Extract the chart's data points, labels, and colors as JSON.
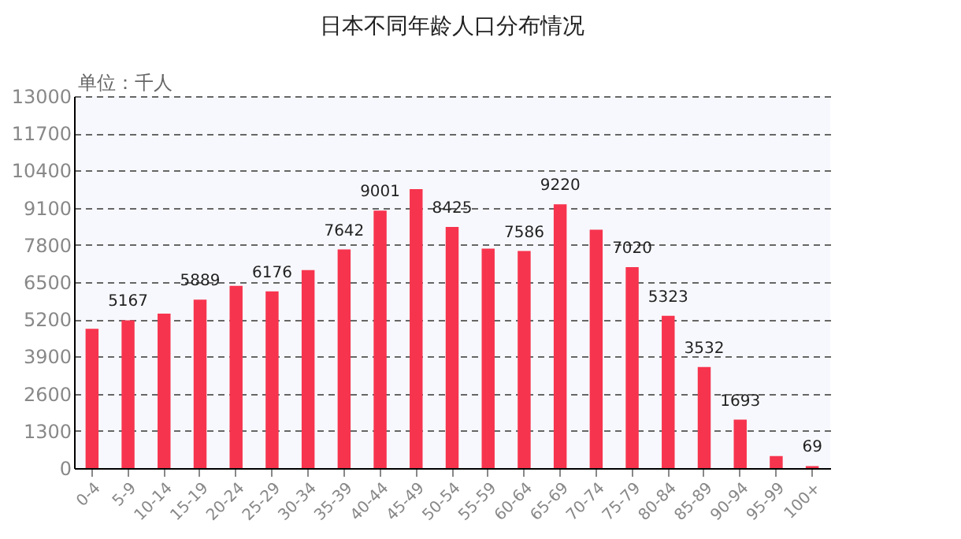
{
  "chart_data": {
    "type": "bar",
    "title": "日本不同年龄人口分布情况",
    "ylabel": "单位：千人",
    "categories": [
      "0-4",
      "5-9",
      "10-14",
      "15-19",
      "20-24",
      "25-29",
      "30-34",
      "35-39",
      "40-44",
      "45-49",
      "50-54",
      "55-59",
      "60-64",
      "65-69",
      "70-74",
      "75-79",
      "80-84",
      "85-89",
      "90-94",
      "95-99",
      "100+"
    ],
    "values": [
      4870,
      5167,
      5400,
      5889,
      6370,
      6176,
      6920,
      7642,
      9001,
      9750,
      8425,
      7670,
      7586,
      9220,
      8330,
      7020,
      5323,
      3532,
      1693,
      420,
      69
    ],
    "value_labels": [
      null,
      "5167",
      null,
      "5889",
      null,
      "6176",
      null,
      "7642",
      "9001",
      null,
      "8425",
      null,
      "7586",
      "9220",
      null,
      "7020",
      "5323",
      "3532",
      "1693",
      null,
      "69"
    ],
    "color": "#f7344e",
    "ylim": [
      0,
      13000
    ],
    "yticks": [
      0,
      1300,
      2600,
      3900,
      5200,
      6500,
      7800,
      9100,
      10400,
      11700,
      13000
    ],
    "grid": "y",
    "line_style": "dashed"
  }
}
